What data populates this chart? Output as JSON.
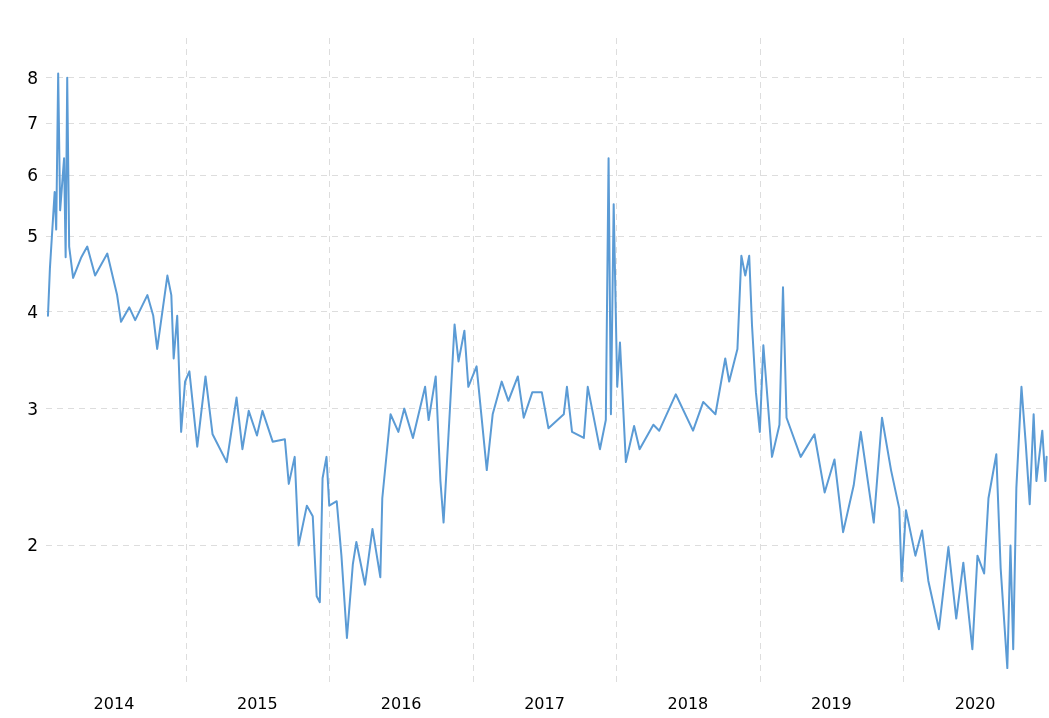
{
  "chart_data": {
    "type": "line",
    "log": "y",
    "grid": true,
    "marker": "none",
    "line_style": "solid",
    "xlim": [
      "2014-01-10",
      "2021-01-01"
    ],
    "xticks": [
      {
        "value": "2014-07-02",
        "label": "2014"
      },
      {
        "value": "2015-01-01",
        "label": null
      },
      {
        "value": "2015-07-02",
        "label": "2015"
      },
      {
        "value": "2016-01-01",
        "label": null
      },
      {
        "value": "2016-07-02",
        "label": "2016"
      },
      {
        "value": "2017-01-01",
        "label": null
      },
      {
        "value": "2017-07-02",
        "label": "2017"
      },
      {
        "value": "2018-01-01",
        "label": null
      },
      {
        "value": "2018-07-02",
        "label": "2018"
      },
      {
        "value": "2019-01-01",
        "label": null
      },
      {
        "value": "2019-07-02",
        "label": "2019"
      },
      {
        "value": "2020-01-01",
        "label": null
      },
      {
        "value": "2020-07-02",
        "label": "2020"
      }
    ],
    "ylim": [
      1.33,
      9
    ],
    "yticks": [
      2,
      3,
      4,
      5,
      6,
      7,
      8
    ],
    "series": [
      {
        "color": "#5b9bd5",
        "x": [
          "2014-01-15",
          "2014-01-20",
          "2014-02-01",
          "2014-02-05",
          "2014-02-10",
          "2014-02-15",
          "2014-02-25",
          "2014-03-01",
          "2014-03-05",
          "2014-03-10",
          "2014-03-20",
          "2014-04-10",
          "2014-04-25",
          "2014-05-15",
          "2014-06-15",
          "2014-07-10",
          "2014-07-20",
          "2014-08-10",
          "2014-08-25",
          "2014-09-25",
          "2014-10-10",
          "2014-10-20",
          "2014-11-15",
          "2014-11-25",
          "2014-12-01",
          "2014-12-10",
          "2014-12-20",
          "2014-12-30",
          "2015-01-10",
          "2015-01-30",
          "2015-02-20",
          "2015-03-10",
          "2015-04-15",
          "2015-05-10",
          "2015-05-25",
          "2015-06-10",
          "2015-07-01",
          "2015-07-15",
          "2015-08-10",
          "2015-09-10",
          "2015-09-20",
          "2015-10-05",
          "2015-10-15",
          "2015-11-05",
          "2015-11-20",
          "2015-11-30",
          "2015-12-08",
          "2015-12-15",
          "2015-12-25",
          "2016-01-01",
          "2016-01-20",
          "2016-02-01",
          "2016-02-15",
          "2016-03-01",
          "2016-03-10",
          "2016-04-01",
          "2016-04-20",
          "2016-05-10",
          "2016-05-15",
          "2016-06-05",
          "2016-06-25",
          "2016-07-10",
          "2016-08-01",
          "2016-09-01",
          "2016-09-10",
          "2016-09-28",
          "2016-10-10",
          "2016-10-18",
          "2016-11-01",
          "2016-11-15",
          "2016-11-25",
          "2016-12-10",
          "2016-12-20",
          "2017-01-10",
          "2017-02-05",
          "2017-02-20",
          "2017-03-15",
          "2017-04-01",
          "2017-04-25",
          "2017-05-10",
          "2017-06-01",
          "2017-06-25",
          "2017-07-12",
          "2017-08-20",
          "2017-08-28",
          "2017-09-10",
          "2017-10-10",
          "2017-10-20",
          "2017-11-20",
          "2017-12-05",
          "2017-12-12",
          "2017-12-18",
          "2017-12-25",
          "2018-01-03",
          "2018-01-10",
          "2018-01-25",
          "2018-02-15",
          "2018-03-01",
          "2018-04-05",
          "2018-04-20",
          "2018-06-01",
          "2018-07-15",
          "2018-08-10",
          "2018-09-10",
          "2018-10-05",
          "2018-10-15",
          "2018-11-05",
          "2018-11-15",
          "2018-11-25",
          "2018-12-05",
          "2018-12-12",
          "2018-12-22",
          "2019-01-01",
          "2019-01-10",
          "2019-02-01",
          "2019-02-20",
          "2019-03-01",
          "2019-03-10",
          "2019-04-15",
          "2019-05-20",
          "2019-06-15",
          "2019-07-10",
          "2019-08-01",
          "2019-08-28",
          "2019-09-15",
          "2019-10-18",
          "2019-11-08",
          "2019-12-01",
          "2019-12-22",
          "2019-12-28",
          "2020-01-08",
          "2020-02-01",
          "2020-02-18",
          "2020-03-05",
          "2020-04-01",
          "2020-04-25",
          "2020-05-15",
          "2020-06-02",
          "2020-06-25",
          "2020-07-08",
          "2020-07-25",
          "2020-08-05",
          "2020-08-25",
          "2020-09-05",
          "2020-09-22",
          "2020-09-30",
          "2020-10-07",
          "2020-10-15",
          "2020-10-28",
          "2020-11-08",
          "2020-11-18",
          "2020-11-28",
          "2020-12-05",
          "2020-12-20",
          "2020-12-28",
          "2020-12-31"
        ],
        "values": [
          3.95,
          4.55,
          5.7,
          5.1,
          8.1,
          5.4,
          6.3,
          4.7,
          8.0,
          4.85,
          4.42,
          4.7,
          4.85,
          4.45,
          4.75,
          4.2,
          3.88,
          4.05,
          3.9,
          4.2,
          3.95,
          3.58,
          4.45,
          4.2,
          3.48,
          3.95,
          2.8,
          3.25,
          3.35,
          2.68,
          3.3,
          2.78,
          2.56,
          3.1,
          2.66,
          2.98,
          2.77,
          2.98,
          2.72,
          2.74,
          2.4,
          2.6,
          2.0,
          2.25,
          2.18,
          1.72,
          1.69,
          2.44,
          2.6,
          2.25,
          2.28,
          1.94,
          1.52,
          1.89,
          2.02,
          1.78,
          2.1,
          1.82,
          2.3,
          2.95,
          2.8,
          3.0,
          2.75,
          3.2,
          2.9,
          3.3,
          2.42,
          2.14,
          2.86,
          3.85,
          3.45,
          3.78,
          3.2,
          3.4,
          2.5,
          2.95,
          3.25,
          3.07,
          3.3,
          2.92,
          3.15,
          3.15,
          2.83,
          2.95,
          3.2,
          2.8,
          2.75,
          3.2,
          2.66,
          2.9,
          6.3,
          2.95,
          5.5,
          3.2,
          3.65,
          2.56,
          2.85,
          2.66,
          2.86,
          2.81,
          3.13,
          2.81,
          3.06,
          2.95,
          3.48,
          3.25,
          3.58,
          4.72,
          4.45,
          4.72,
          3.85,
          3.15,
          2.8,
          3.62,
          2.6,
          2.86,
          4.3,
          2.92,
          2.6,
          2.78,
          2.34,
          2.58,
          2.08,
          2.39,
          2.8,
          2.14,
          2.92,
          2.5,
          2.23,
          1.8,
          2.22,
          1.94,
          2.09,
          1.8,
          1.56,
          1.99,
          1.61,
          1.9,
          1.47,
          1.94,
          1.84,
          2.3,
          2.62,
          1.87,
          1.39,
          2.0,
          1.47,
          2.37,
          3.2,
          2.7,
          2.26,
          2.95,
          2.42,
          2.81,
          2.42,
          2.6
        ]
      }
    ]
  }
}
